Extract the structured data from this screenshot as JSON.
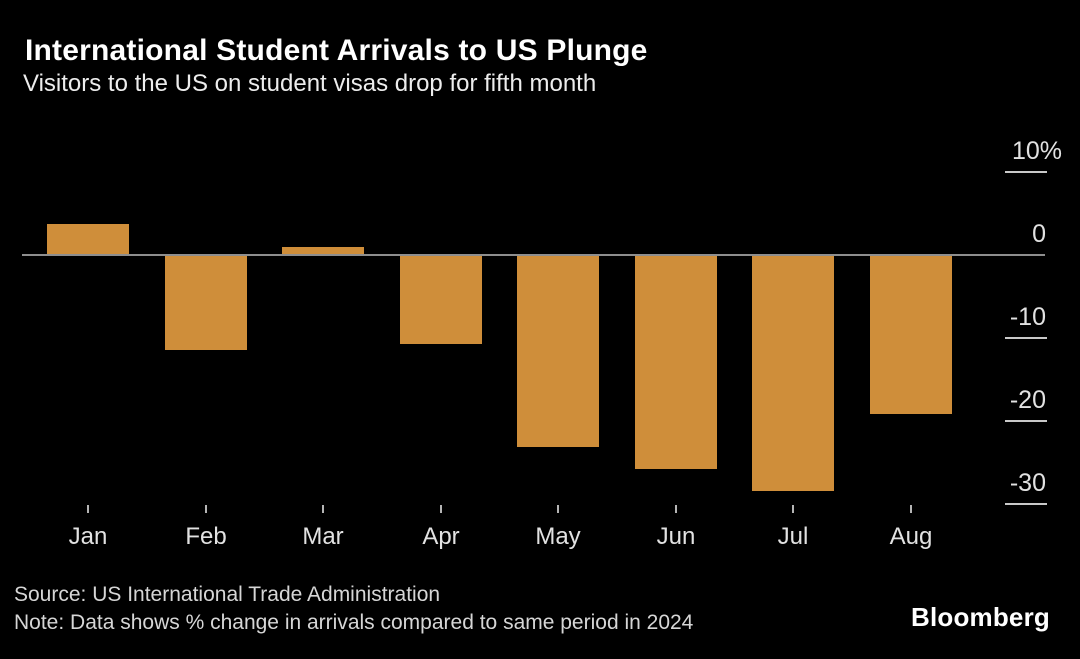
{
  "header": {
    "title": "International Student Arrivals to US Plunge",
    "subtitle": "Visitors to the US on student visas drop for fifth month"
  },
  "chart_data": {
    "type": "bar",
    "categories": [
      "Jan",
      "Feb",
      "Mar",
      "Apr",
      "May",
      "Jun",
      "Jul",
      "Aug"
    ],
    "values": [
      3.7,
      -11.4,
      1.0,
      -10.7,
      -23.1,
      -25.8,
      -28.4,
      -19.1
    ],
    "unit": "percent change year-over-year",
    "title": "International Student Arrivals to US Plunge",
    "xlabel": "",
    "ylabel": "",
    "ylim": [
      -33,
      12
    ],
    "y_ticks": [
      {
        "value": 10,
        "label": "10%"
      },
      {
        "value": 0,
        "label": "0"
      },
      {
        "value": -10,
        "label": "-10"
      },
      {
        "value": -20,
        "label": "-20"
      },
      {
        "value": -30,
        "label": "-30"
      }
    ],
    "legend_position": "none",
    "gridlines": false,
    "colors": {
      "background": "#000000",
      "bar": "#CF8E3A",
      "axis_line": "#8E8E8E",
      "tick": "#C9C9C9",
      "labels": "#E2E2E2"
    }
  },
  "footer": {
    "source": "Source: US International Trade Administration",
    "note": "Note: Data shows % change in arrivals compared to same period in 2024",
    "brand": "Bloomberg"
  }
}
